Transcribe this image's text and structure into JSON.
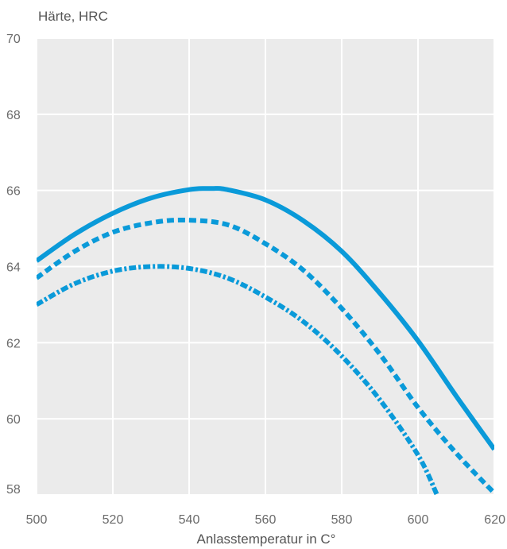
{
  "chart_data": {
    "type": "line",
    "title": "",
    "ylabel": "Härte, HRC",
    "xlabel": "Anlasstemperatur in C°",
    "xlim": [
      500,
      620
    ],
    "ylim": [
      58,
      70
    ],
    "x_ticks": [
      500,
      520,
      540,
      560,
      580,
      600,
      620
    ],
    "y_ticks": [
      58,
      60,
      62,
      64,
      66,
      68,
      70
    ],
    "x_tick_labels": [
      "500",
      "520",
      "540",
      "560",
      "580",
      "600",
      "620"
    ],
    "y_tick_labels": [
      "58",
      "60",
      "62",
      "64",
      "66",
      "68",
      "70"
    ],
    "grid": true,
    "colors": {
      "plot_background": "#ebebeb",
      "grid": "#ffffff",
      "series": "#0a9ad9"
    },
    "series": [
      {
        "style": "solid",
        "points": [
          [
            500,
            64.15
          ],
          [
            510,
            64.85
          ],
          [
            520,
            65.4
          ],
          [
            530,
            65.8
          ],
          [
            540,
            66.02
          ],
          [
            546,
            66.05
          ],
          [
            550,
            66.02
          ],
          [
            560,
            65.75
          ],
          [
            570,
            65.2
          ],
          [
            580,
            64.4
          ],
          [
            590,
            63.3
          ],
          [
            600,
            62.05
          ],
          [
            610,
            60.6
          ],
          [
            620,
            59.2
          ]
        ]
      },
      {
        "style": "dashed",
        "points": [
          [
            500,
            63.7
          ],
          [
            510,
            64.4
          ],
          [
            520,
            64.9
          ],
          [
            530,
            65.15
          ],
          [
            539,
            65.22
          ],
          [
            550,
            65.1
          ],
          [
            560,
            64.6
          ],
          [
            570,
            63.9
          ],
          [
            580,
            62.9
          ],
          [
            590,
            61.7
          ],
          [
            600,
            60.3
          ],
          [
            610,
            59.1
          ],
          [
            620,
            58.05
          ]
        ]
      },
      {
        "style": "dash-dot",
        "points": [
          [
            500,
            63.0
          ],
          [
            510,
            63.55
          ],
          [
            520,
            63.88
          ],
          [
            530,
            64.0
          ],
          [
            540,
            63.95
          ],
          [
            550,
            63.7
          ],
          [
            560,
            63.2
          ],
          [
            570,
            62.55
          ],
          [
            580,
            61.65
          ],
          [
            590,
            60.5
          ],
          [
            600,
            59.05
          ],
          [
            605,
            58.0
          ]
        ]
      }
    ]
  }
}
